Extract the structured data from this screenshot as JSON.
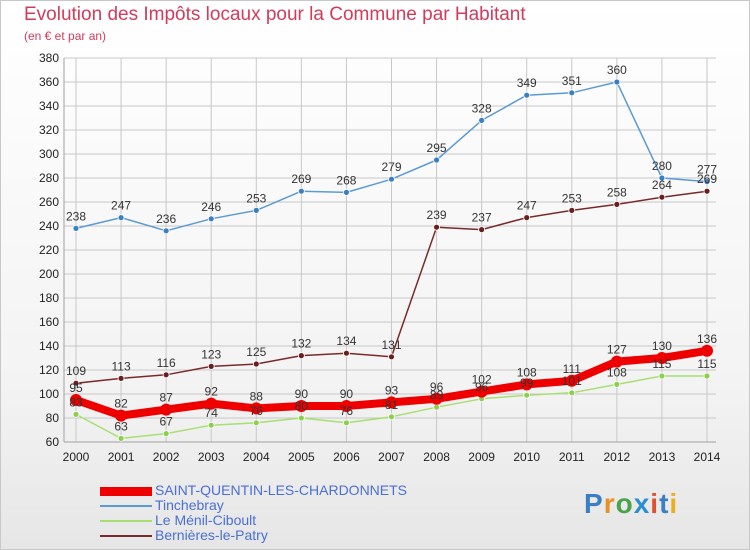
{
  "title": "Evolution des Impôts locaux pour la Commune par Habitant",
  "subtitle": "(en € et par an)",
  "logo": "Proxiti",
  "colors": {
    "title": "#d23c5a",
    "grid": "#c8c8c8",
    "axis": "#a0a0a0"
  },
  "chart_data": {
    "type": "line",
    "categories": [
      "2000",
      "2001",
      "2002",
      "2003",
      "2004",
      "2005",
      "2006",
      "2007",
      "2008",
      "2009",
      "2010",
      "2011",
      "2012",
      "2013",
      "2014"
    ],
    "yticks": [
      60,
      80,
      100,
      120,
      140,
      160,
      180,
      200,
      220,
      240,
      260,
      280,
      300,
      320,
      340,
      360,
      380
    ],
    "ylim": [
      60,
      380
    ],
    "grid": true,
    "legend": "bottom-left",
    "series": [
      {
        "name": "Tinchebray",
        "color": "#5b9bd5",
        "marker": "#3a7fc4",
        "values": [
          238,
          247,
          236,
          246,
          253,
          269,
          268,
          279,
          295,
          328,
          349,
          351,
          360,
          280,
          277
        ],
        "labels": [
          "238",
          "247",
          "236",
          "246",
          "253",
          "269",
          "268",
          "279",
          "295",
          "328",
          "349",
          "351",
          "360",
          "280",
          "277"
        ]
      },
      {
        "name": "Bernières-le-Patry",
        "color": "#7a2a2a",
        "marker": "#6a1f1f",
        "values": [
          109,
          113,
          116,
          123,
          125,
          132,
          134,
          131,
          239,
          237,
          247,
          253,
          258,
          264,
          269
        ],
        "labels": [
          "109",
          "113",
          "116",
          "123",
          "125",
          "132",
          "134",
          "131",
          "239",
          "237",
          "247",
          "253",
          "258",
          "264",
          "269"
        ]
      },
      {
        "name": "Le Ménil-Ciboult",
        "color": "#a8de72",
        "marker": "#8ccf4e",
        "values": [
          83,
          63,
          67,
          74,
          76,
          80,
          76,
          81,
          89,
          96,
          99,
          101,
          108,
          115,
          115
        ],
        "labels": [
          "83",
          "63",
          "67",
          "74",
          "76",
          "80",
          "76",
          "81",
          "89",
          "96",
          "99",
          "101",
          "108",
          "115",
          "115"
        ]
      },
      {
        "name": "SAINT-QUENTIN-LES-CHARDONNETS",
        "color": "#ee0000",
        "marker": "#ee0000",
        "values": [
          95,
          82,
          87,
          92,
          88,
          90,
          90,
          93,
          96,
          102,
          108,
          111,
          127,
          130,
          136
        ],
        "labels": [
          "95",
          "82",
          "87",
          "92",
          "88",
          "90",
          "90",
          "93",
          "96",
          "102",
          "108",
          "111",
          "127",
          "130",
          "136"
        ]
      }
    ]
  },
  "legend_items": [
    {
      "name": "SAINT-QUENTIN-LES-CHARDONNETS",
      "color": "#ee0000"
    },
    {
      "name": "Tinchebray",
      "color": "#5b9bd5"
    },
    {
      "name": "Le Ménil-Ciboult",
      "color": "#a8de72"
    },
    {
      "name": "Bernières-le-Patry",
      "color": "#7a2a2a"
    }
  ]
}
